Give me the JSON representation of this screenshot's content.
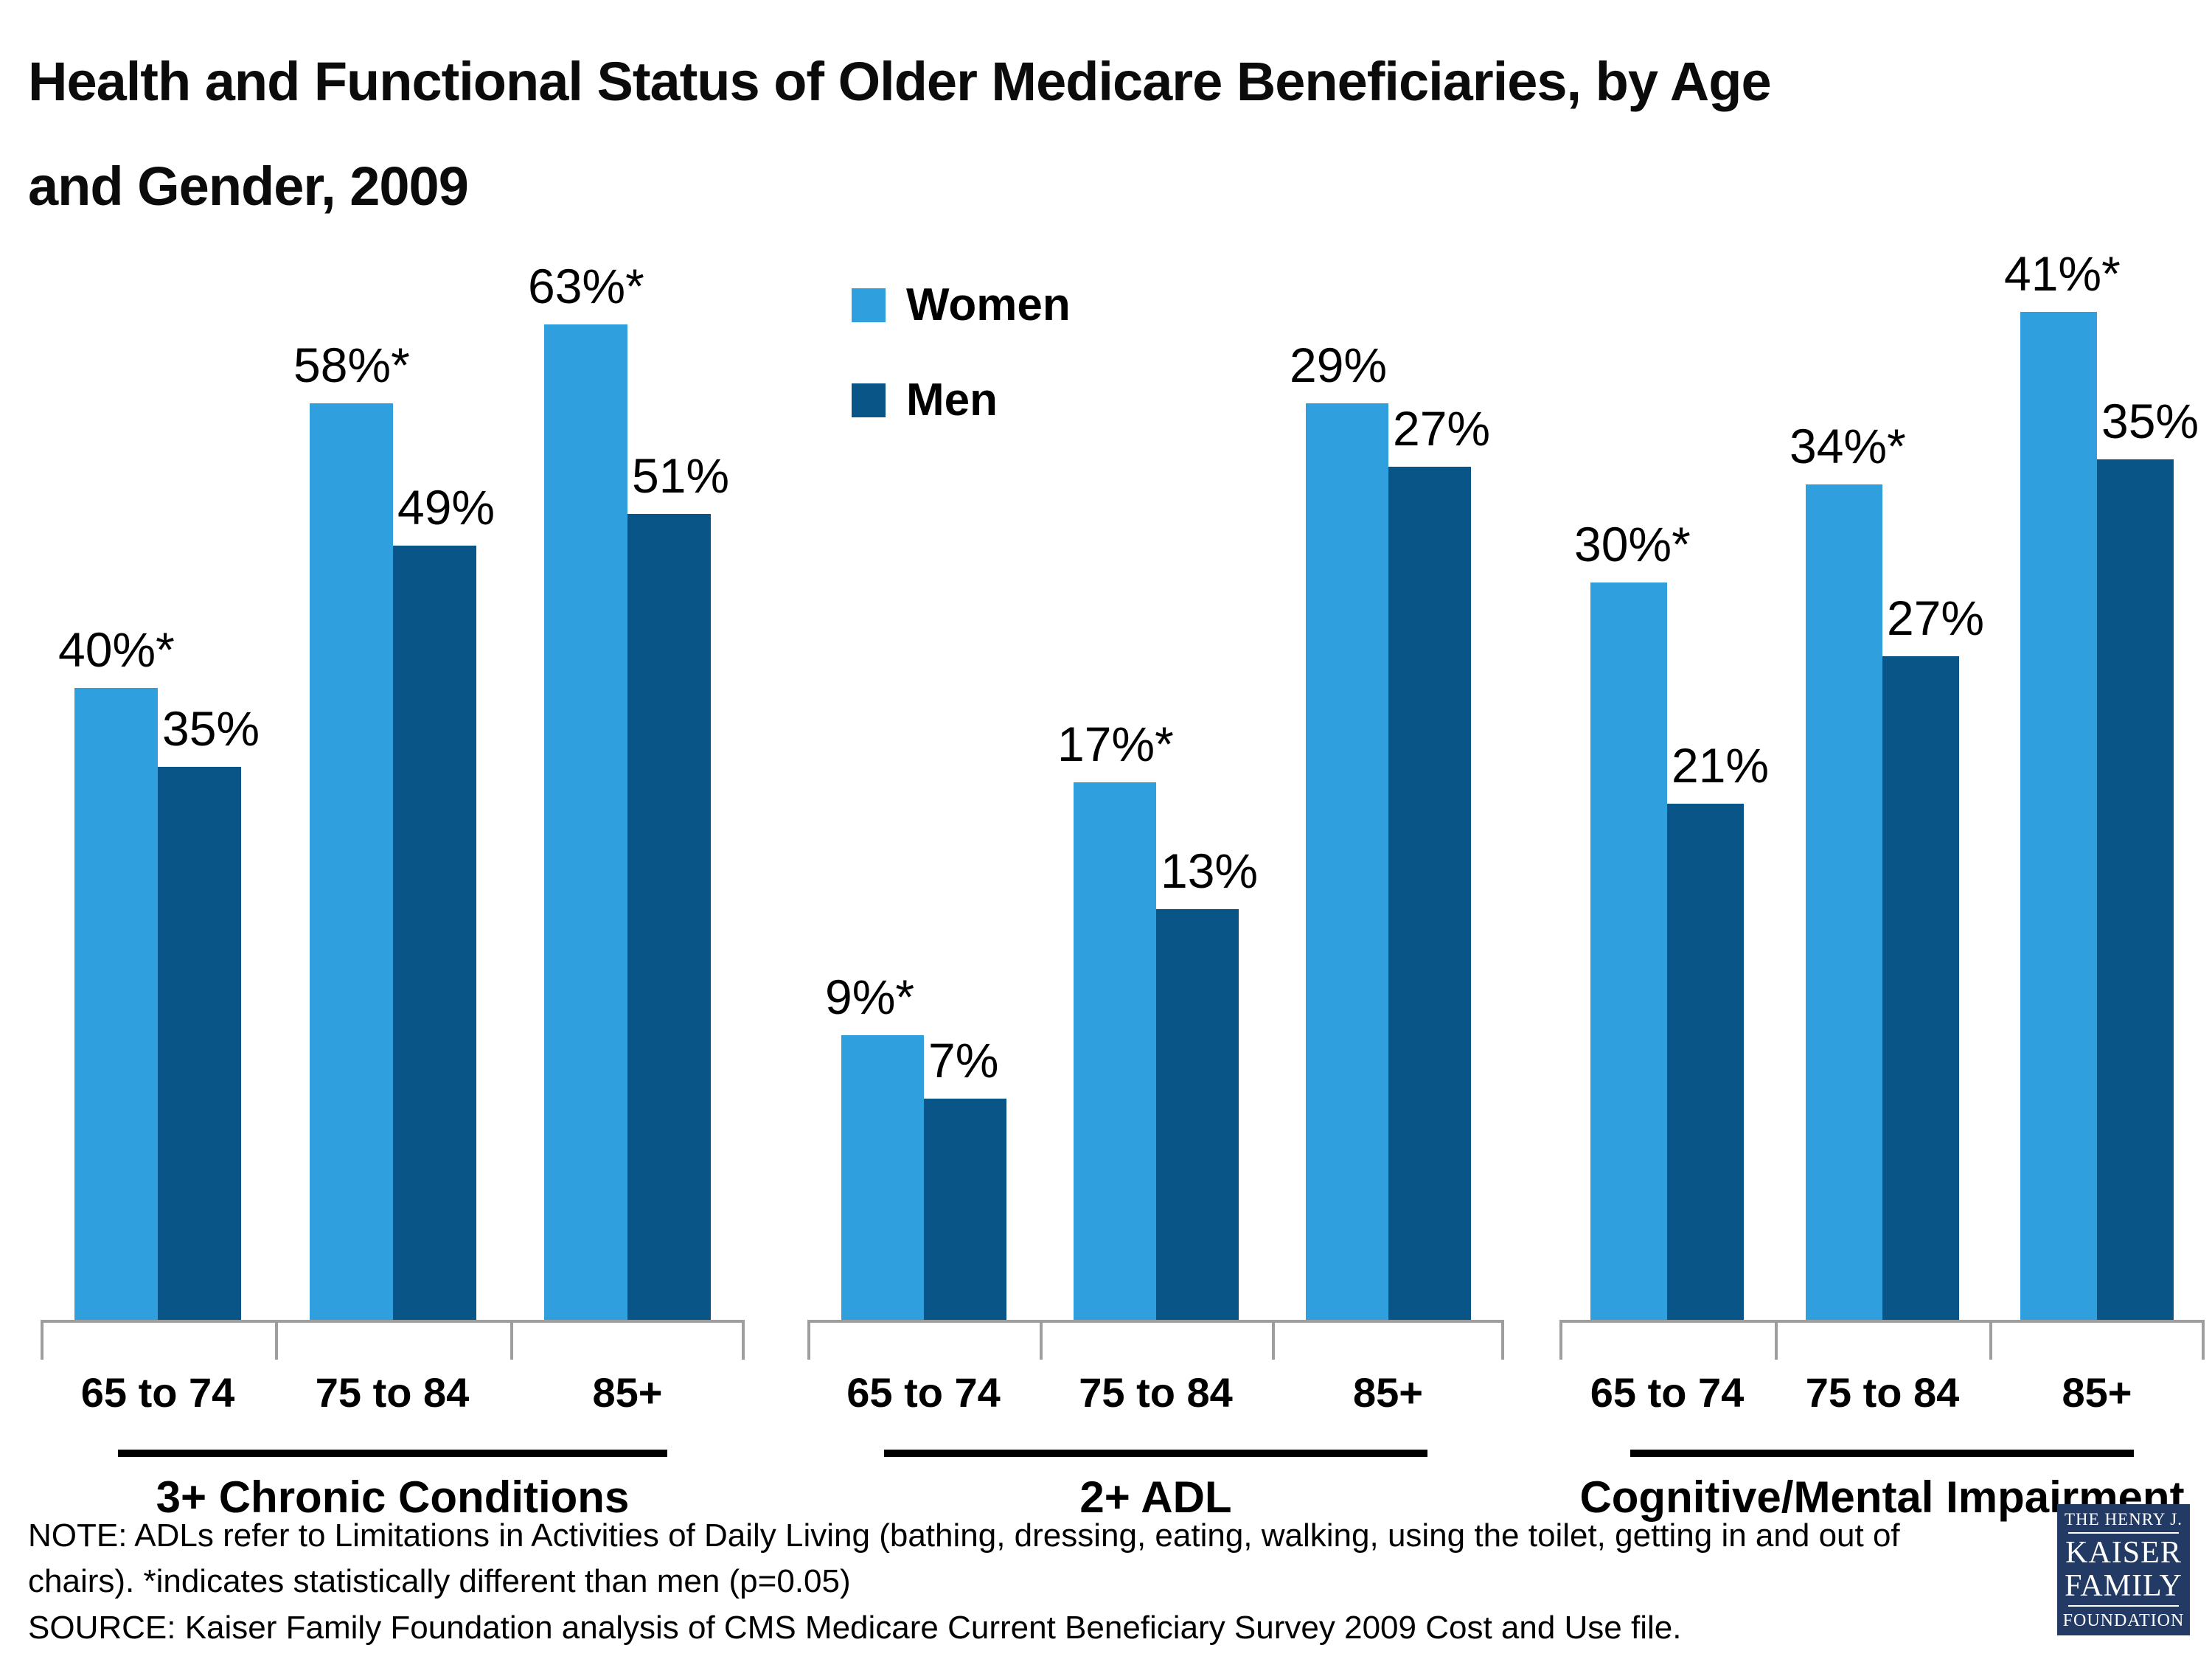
{
  "title": {
    "line1": "Health and Functional Status of Older Medicare Beneficiaries, by Age",
    "line2": "and Gender, 2009"
  },
  "legend": {
    "items": [
      {
        "label": "Women",
        "color": "#2FA0DD"
      },
      {
        "label": "Men",
        "color": "#0A5588"
      }
    ]
  },
  "chart_data": {
    "type": "bar",
    "grid": false,
    "legend_position": "top-center above middle panel",
    "categories": [
      "65 to 74",
      "75 to 84",
      "85+"
    ],
    "colors": {
      "women": "#2FA0DD",
      "men": "#0A5588"
    },
    "panels": [
      {
        "title": "3+ Chronic Conditions",
        "ylim": [
          0,
          70
        ],
        "series": [
          {
            "name": "Women",
            "values": [
              40,
              58,
              63
            ],
            "labels": [
              "40%*",
              "58%*",
              "63%*"
            ]
          },
          {
            "name": "Men",
            "values": [
              35,
              49,
              51
            ],
            "labels": [
              "35%",
              "49%",
              "51%"
            ]
          }
        ]
      },
      {
        "title": "2+ ADL",
        "ylim": [
          0,
          35
        ],
        "series": [
          {
            "name": "Women",
            "values": [
              9,
              17,
              29
            ],
            "labels": [
              "9%*",
              "17%*",
              "29%"
            ]
          },
          {
            "name": "Men",
            "values": [
              7,
              13,
              27
            ],
            "labels": [
              "7%",
              "13%",
              "27%"
            ]
          }
        ]
      },
      {
        "title": "Cognitive/Mental Impairment",
        "ylim": [
          0,
          45
        ],
        "series": [
          {
            "name": "Women",
            "values": [
              30,
              34,
              41
            ],
            "labels": [
              "30%*",
              "34%*",
              "41%*"
            ]
          },
          {
            "name": "Men",
            "values": [
              21,
              27,
              35
            ],
            "labels": [
              "21%",
              "27%",
              "35%"
            ]
          }
        ]
      }
    ]
  },
  "footnote": {
    "note_line1": "NOTE: ADLs refer to Limitations in Activities of Daily Living (bathing, dressing, eating, walking, using the toilet, getting in and out of",
    "note_line2": "chairs). *indicates statistically different than men (p=0.05)",
    "source": "SOURCE: Kaiser Family Foundation analysis of CMS Medicare Current Beneficiary Survey 2009 Cost and Use file."
  },
  "logo": {
    "bg": "#223A64",
    "line1": "THE HENRY J.",
    "line2": "KAISER",
    "line3": "FAMILY",
    "line4": "FOUNDATION"
  }
}
